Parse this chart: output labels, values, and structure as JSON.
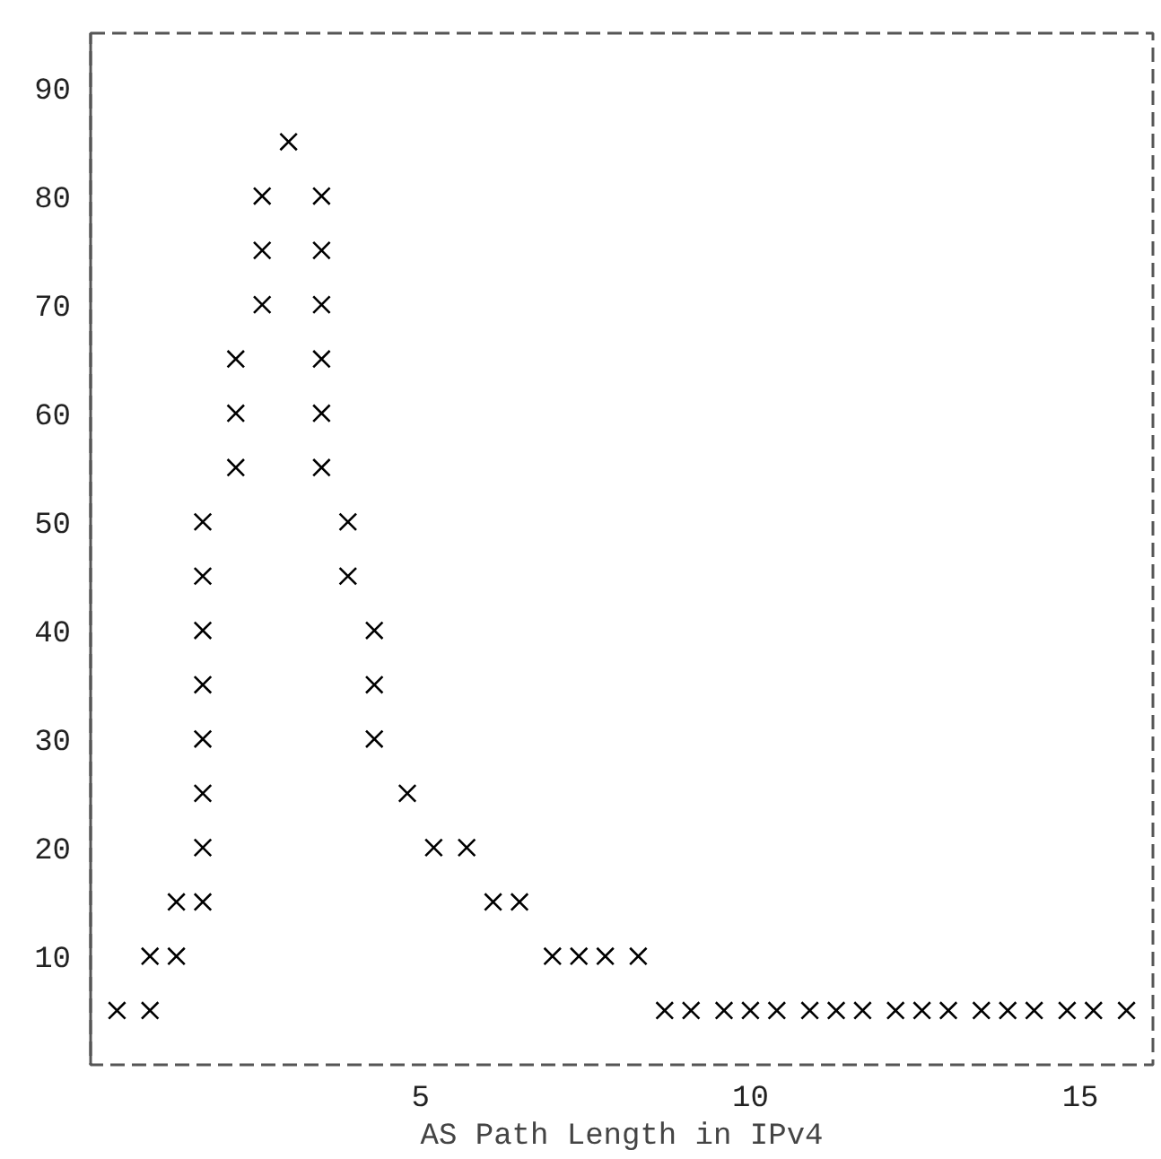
{
  "chart_data": {
    "type": "scatter",
    "xlabel": "AS Path Length in IPv4",
    "x": [
      3.0,
      2.6,
      3.5,
      2.6,
      3.5,
      2.6,
      3.5,
      2.2,
      3.5,
      2.2,
      3.5,
      2.2,
      3.5,
      1.7,
      3.9,
      1.7,
      3.9,
      1.7,
      4.3,
      1.7,
      4.3,
      1.7,
      4.3,
      1.7,
      4.8,
      1.7,
      5.2,
      5.7,
      1.3,
      1.7,
      6.1,
      6.5,
      0.9,
      1.3,
      7.0,
      7.4,
      7.8,
      8.3,
      0.4,
      0.9,
      8.7,
      9.1,
      9.6,
      10.0,
      10.4,
      10.9,
      11.3,
      11.7,
      12.2,
      12.6,
      13.0,
      13.5,
      13.9,
      14.3,
      14.8,
      15.2,
      15.7
    ],
    "values": [
      85,
      80,
      80,
      75,
      75,
      70,
      70,
      65,
      65,
      60,
      60,
      55,
      55,
      50,
      50,
      45,
      45,
      40,
      40,
      35,
      35,
      30,
      30,
      25,
      25,
      20,
      20,
      20,
      15,
      15,
      15,
      15,
      10,
      10,
      10,
      10,
      10,
      10,
      5,
      5,
      5,
      5,
      5,
      5,
      5,
      5,
      5,
      5,
      5,
      5,
      5,
      5,
      5,
      5,
      5,
      5,
      5
    ],
    "color": "#000000",
    "marker": "cross",
    "xlim": [
      0,
      16.1
    ],
    "xticks": [
      5,
      10,
      15
    ],
    "ylim": [
      0,
      95
    ],
    "yticks": [
      10,
      20,
      30,
      40,
      50,
      60,
      70,
      80,
      90
    ],
    "grid": false
  }
}
